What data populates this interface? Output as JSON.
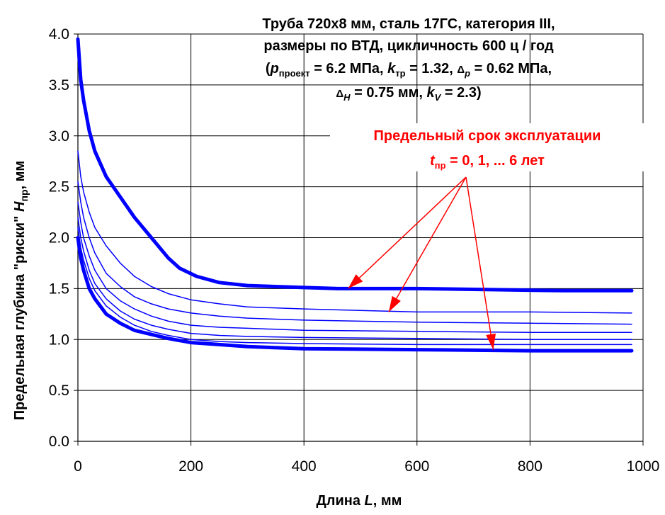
{
  "title": {
    "line1": "Труба 720x8 мм, сталь 17ГС, категория III,",
    "line2": "размеры по ВТД, цикличность 600 ц / год",
    "line3": {
      "p_sym": "p",
      "p_sub": "проект",
      "p_val": " = 6.2 МПа, ",
      "ktr_sym": "k",
      "ktr_sub": "тр",
      "ktr_val": " = 1.32, ",
      "dp_sym": "Δ",
      "dp_sub": "p",
      "dp_val": " = 0.62 МПа,"
    },
    "line4": {
      "dh_sym": "Δ",
      "dh_sub": "H",
      "dh_val": " = 0.75 мм, ",
      "kv_sym": "k",
      "kv_sub": "V",
      "kv_val": " = 2.3)"
    }
  },
  "annotation": {
    "line1": "Предельный срок эксплуатации",
    "t_sym": "t",
    "t_sub": "пр",
    "t_rest": " = 0, 1, ... 6 лет",
    "color": "#ff0000"
  },
  "xlabel": {
    "text": "Длина ",
    "sym": "L",
    "rest": ", мм"
  },
  "ylabel": {
    "text": "Предельная глубина \"риски\"   ",
    "sym": "H",
    "sub": "пр",
    "rest": ", мм"
  },
  "chart_data": {
    "type": "line",
    "xlim": [
      0,
      1000
    ],
    "ylim": [
      0,
      4.0
    ],
    "xticks": [
      "0",
      "200",
      "400",
      "600",
      "800",
      "1000"
    ],
    "yticks": [
      "0.0",
      "0.5",
      "1.0",
      "1.5",
      "2.0",
      "2.5",
      "3.0",
      "3.5",
      "4.0"
    ],
    "grid": true,
    "line_color": "#0000ff",
    "series": [
      {
        "width": 5,
        "x": [
          0,
          5,
          10,
          20,
          30,
          50,
          75,
          100,
          130,
          160,
          180,
          210,
          250,
          300,
          400,
          460,
          600,
          860,
          980
        ],
        "y": [
          3.95,
          3.55,
          3.35,
          3.05,
          2.85,
          2.6,
          2.4,
          2.2,
          2.0,
          1.8,
          1.7,
          1.62,
          1.56,
          1.53,
          1.51,
          1.5,
          1.5,
          1.48,
          1.48
        ]
      },
      {
        "width": 1.5,
        "x": [
          0,
          5,
          10,
          20,
          30,
          50,
          75,
          100,
          130,
          160,
          200,
          250,
          300,
          400,
          600,
          800,
          980
        ],
        "y": [
          2.85,
          2.6,
          2.45,
          2.25,
          2.1,
          1.92,
          1.75,
          1.62,
          1.52,
          1.45,
          1.39,
          1.35,
          1.32,
          1.3,
          1.27,
          1.27,
          1.26
        ]
      },
      {
        "width": 1.5,
        "x": [
          0,
          5,
          10,
          20,
          30,
          50,
          75,
          100,
          130,
          160,
          200,
          250,
          300,
          400,
          600,
          800,
          980
        ],
        "y": [
          2.55,
          2.35,
          2.2,
          2.0,
          1.85,
          1.65,
          1.52,
          1.42,
          1.35,
          1.3,
          1.26,
          1.23,
          1.21,
          1.19,
          1.17,
          1.16,
          1.15
        ]
      },
      {
        "width": 1.5,
        "x": [
          0,
          5,
          10,
          20,
          30,
          50,
          75,
          100,
          130,
          160,
          200,
          250,
          300,
          400,
          600,
          800,
          980
        ],
        "y": [
          2.35,
          2.15,
          2.0,
          1.82,
          1.68,
          1.5,
          1.38,
          1.3,
          1.23,
          1.18,
          1.14,
          1.12,
          1.11,
          1.09,
          1.08,
          1.07,
          1.07
        ]
      },
      {
        "width": 1.5,
        "x": [
          0,
          5,
          10,
          20,
          30,
          50,
          75,
          100,
          130,
          160,
          200,
          250,
          300,
          400,
          600,
          800,
          980
        ],
        "y": [
          2.2,
          2.0,
          1.87,
          1.68,
          1.55,
          1.4,
          1.28,
          1.2,
          1.14,
          1.1,
          1.06,
          1.04,
          1.03,
          1.02,
          1.01,
          1.0,
          1.0
        ]
      },
      {
        "width": 1.5,
        "x": [
          0,
          5,
          10,
          20,
          30,
          50,
          75,
          100,
          130,
          160,
          200,
          250,
          300,
          400,
          600,
          800,
          980
        ],
        "y": [
          2.1,
          1.9,
          1.78,
          1.6,
          1.48,
          1.33,
          1.22,
          1.14,
          1.08,
          1.04,
          1.0,
          0.98,
          0.97,
          0.96,
          0.95,
          0.95,
          0.95
        ]
      },
      {
        "width": 5,
        "x": [
          0,
          5,
          10,
          20,
          30,
          50,
          75,
          100,
          130,
          160,
          200,
          250,
          300,
          400,
          600,
          800,
          980
        ],
        "y": [
          2.0,
          1.8,
          1.68,
          1.5,
          1.4,
          1.25,
          1.16,
          1.09,
          1.05,
          1.01,
          0.97,
          0.95,
          0.93,
          0.91,
          0.9,
          0.89,
          0.89
        ]
      }
    ],
    "arrows": [
      {
        "to_x": 478,
        "to_y": 1.5
      },
      {
        "to_x": 550,
        "to_y": 1.27
      },
      {
        "to_x": 735,
        "to_y": 0.9
      }
    ]
  }
}
